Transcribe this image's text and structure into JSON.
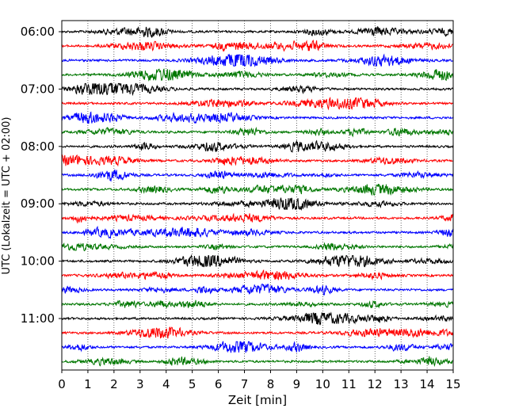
{
  "chart_data": {
    "type": "line",
    "title": "",
    "xlabel": "Zeit  [min]",
    "ylabel": "UTC (Lokalzeit = UTC + 02:00)",
    "xlim": [
      0,
      15
    ],
    "x_ticks": [
      "0",
      "1",
      "2",
      "3",
      "4",
      "5",
      "6",
      "7",
      "8",
      "9",
      "10",
      "11",
      "12",
      "13",
      "14",
      "15"
    ],
    "y_tick_labels": [
      "06:00",
      "07:00",
      "08:00",
      "09:00",
      "10:00",
      "11:00"
    ],
    "grid": "vertical dotted at each minute",
    "trace_interval_minutes": 15,
    "trace_colors": [
      "#000000",
      "#ff0000",
      "#0000ff",
      "#007700"
    ],
    "traces": [
      {
        "start": "06:00",
        "color": "#000000"
      },
      {
        "start": "06:15",
        "color": "#ff0000"
      },
      {
        "start": "06:30",
        "color": "#0000ff"
      },
      {
        "start": "06:45",
        "color": "#007700"
      },
      {
        "start": "07:00",
        "color": "#000000"
      },
      {
        "start": "07:15",
        "color": "#ff0000"
      },
      {
        "start": "07:30",
        "color": "#0000ff"
      },
      {
        "start": "07:45",
        "color": "#007700"
      },
      {
        "start": "08:00",
        "color": "#000000"
      },
      {
        "start": "08:15",
        "color": "#ff0000"
      },
      {
        "start": "08:30",
        "color": "#0000ff"
      },
      {
        "start": "08:45",
        "color": "#007700"
      },
      {
        "start": "09:00",
        "color": "#000000"
      },
      {
        "start": "09:15",
        "color": "#ff0000"
      },
      {
        "start": "09:30",
        "color": "#0000ff"
      },
      {
        "start": "09:45",
        "color": "#007700"
      },
      {
        "start": "10:00",
        "color": "#000000"
      },
      {
        "start": "10:15",
        "color": "#ff0000"
      },
      {
        "start": "10:30",
        "color": "#0000ff"
      },
      {
        "start": "10:45",
        "color": "#007700"
      },
      {
        "start": "11:00",
        "color": "#000000"
      },
      {
        "start": "11:15",
        "color": "#ff0000"
      },
      {
        "start": "11:30",
        "color": "#0000ff"
      },
      {
        "start": "11:45",
        "color": "#007700"
      }
    ]
  }
}
